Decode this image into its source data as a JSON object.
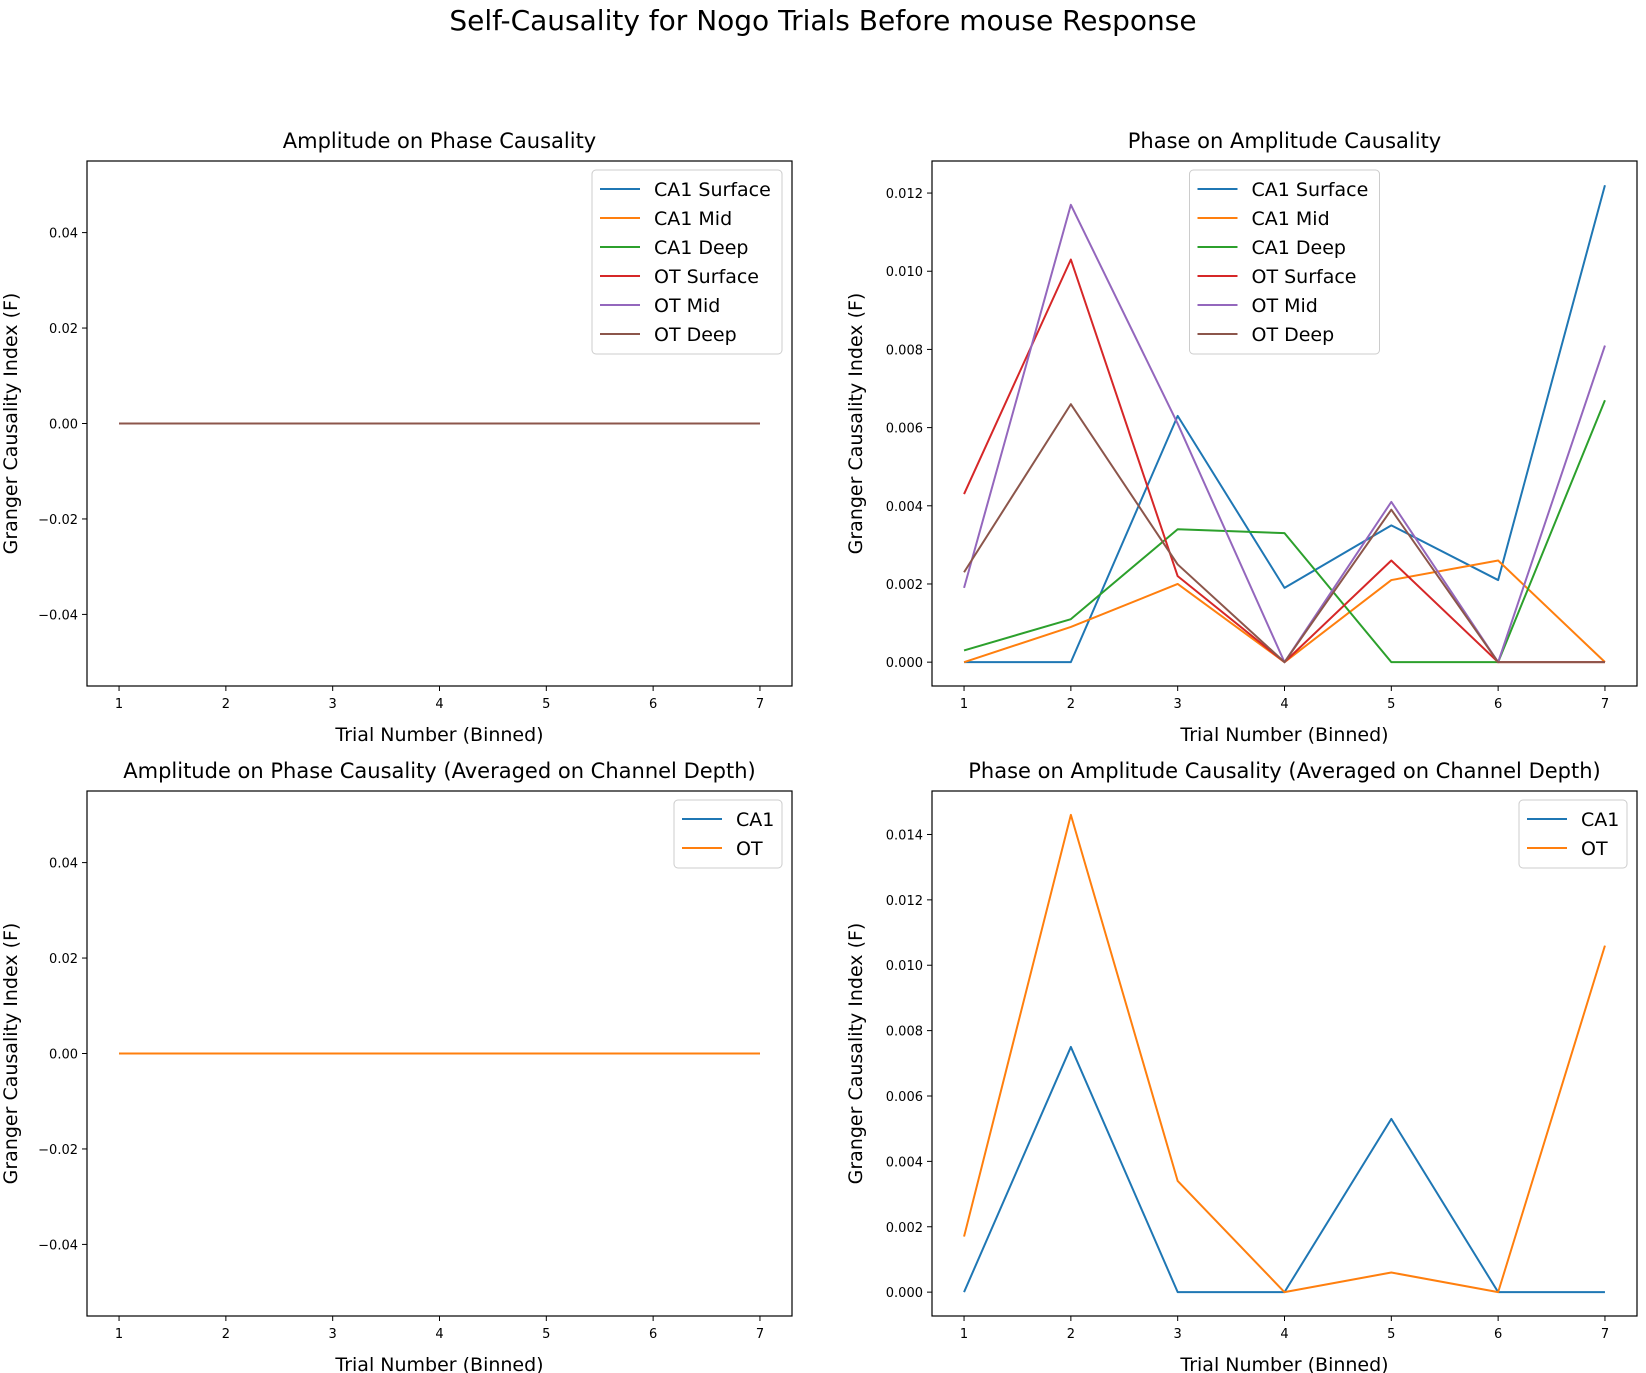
{
  "figure": {
    "suptitle": "Self-Causality for Nogo Trials Before mouse Response"
  },
  "colors": {
    "CA1 Surface": "#1f77b4",
    "CA1 Mid": "#ff7f0e",
    "CA1 Deep": "#2ca02c",
    "OT Surface": "#d62728",
    "OT Mid": "#9467bd",
    "OT Deep": "#8c564b",
    "CA1": "#1f77b4",
    "OT": "#ff7f0e"
  },
  "chart_data": [
    {
      "type": "line",
      "title": "Amplitude on Phase Causality",
      "xlabel": "Trial Number (Binned)",
      "ylabel": "Granger Causality Index (F)",
      "x": [
        1,
        2,
        3,
        4,
        5,
        6,
        7
      ],
      "xlim": [
        0.7,
        7.3
      ],
      "ylim": [
        -0.055,
        0.055
      ],
      "xticks": [
        1,
        2,
        3,
        4,
        5,
        6,
        7
      ],
      "yticks": [
        -0.04,
        -0.02,
        0.0,
        0.02,
        0.04
      ],
      "ytick_labels": [
        "−0.04",
        "−0.02",
        "0.00",
        "0.02",
        "0.04"
      ],
      "grid": false,
      "legend": "top-right",
      "series": [
        {
          "name": "CA1 Surface",
          "values": [
            0,
            0,
            0,
            0,
            0,
            0,
            0
          ]
        },
        {
          "name": "CA1 Mid",
          "values": [
            0,
            0,
            0,
            0,
            0,
            0,
            0
          ]
        },
        {
          "name": "CA1 Deep",
          "values": [
            0,
            0,
            0,
            0,
            0,
            0,
            0
          ]
        },
        {
          "name": "OT Surface",
          "values": [
            0,
            0,
            0,
            0,
            0,
            0,
            0
          ]
        },
        {
          "name": "OT Mid",
          "values": [
            0,
            0,
            0,
            0,
            0,
            0,
            0
          ]
        },
        {
          "name": "OT Deep",
          "values": [
            0,
            0,
            0,
            0,
            0,
            0,
            0
          ]
        }
      ]
    },
    {
      "type": "line",
      "title": "Phase on Amplitude Causality",
      "xlabel": "Trial Number (Binned)",
      "ylabel": "Granger Causality Index (F)",
      "x": [
        1,
        2,
        3,
        4,
        5,
        6,
        7
      ],
      "xlim": [
        0.7,
        7.3
      ],
      "ylim": [
        -0.00061,
        0.01282
      ],
      "xticks": [
        1,
        2,
        3,
        4,
        5,
        6,
        7
      ],
      "yticks": [
        0.0,
        0.002,
        0.004,
        0.006,
        0.008,
        0.01,
        0.012
      ],
      "ytick_labels": [
        "0.000",
        "0.002",
        "0.004",
        "0.006",
        "0.008",
        "0.010",
        "0.012"
      ],
      "grid": false,
      "legend": "top-center",
      "series": [
        {
          "name": "CA1 Surface",
          "values": [
            0.0,
            0.0,
            0.0063,
            0.0019,
            0.0035,
            0.0021,
            0.0122
          ]
        },
        {
          "name": "CA1 Mid",
          "values": [
            0.0,
            0.0009,
            0.002,
            0.0,
            0.0021,
            0.0026,
            0.0
          ]
        },
        {
          "name": "CA1 Deep",
          "values": [
            0.0003,
            0.0011,
            0.0034,
            0.0033,
            0.0,
            0.0,
            0.0067
          ]
        },
        {
          "name": "OT Surface",
          "values": [
            0.0043,
            0.0103,
            0.0022,
            0.0,
            0.0026,
            0.0,
            0.0
          ]
        },
        {
          "name": "OT Mid",
          "values": [
            0.0019,
            0.0117,
            0.0061,
            0.0,
            0.0041,
            0.0,
            0.0081
          ]
        },
        {
          "name": "OT Deep",
          "values": [
            0.0023,
            0.0066,
            0.0025,
            0.0,
            0.0039,
            0.0,
            0.0
          ]
        }
      ]
    },
    {
      "type": "line",
      "title": "Amplitude on Phase Causality (Averaged on Channel Depth)",
      "xlabel": "Trial Number (Binned)",
      "ylabel": "Granger Causality Index (F)",
      "x": [
        1,
        2,
        3,
        4,
        5,
        6,
        7
      ],
      "xlim": [
        0.7,
        7.3
      ],
      "ylim": [
        -0.055,
        0.055
      ],
      "xticks": [
        1,
        2,
        3,
        4,
        5,
        6,
        7
      ],
      "yticks": [
        -0.04,
        -0.02,
        0.0,
        0.02,
        0.04
      ],
      "ytick_labels": [
        "−0.04",
        "−0.02",
        "0.00",
        "0.02",
        "0.04"
      ],
      "grid": false,
      "legend": "top-right",
      "series": [
        {
          "name": "CA1",
          "values": [
            0,
            0,
            0,
            0,
            0,
            0,
            0
          ]
        },
        {
          "name": "OT",
          "values": [
            0,
            0,
            0,
            0,
            0,
            0,
            0
          ]
        }
      ]
    },
    {
      "type": "line",
      "title": "Phase on Amplitude Causality (Averaged on Channel Depth)",
      "xlabel": "Trial Number (Binned)",
      "ylabel": "Granger Causality Index (F)",
      "x": [
        1,
        2,
        3,
        4,
        5,
        6,
        7
      ],
      "xlim": [
        0.7,
        7.3
      ],
      "ylim": [
        -0.00073,
        0.01533
      ],
      "xticks": [
        1,
        2,
        3,
        4,
        5,
        6,
        7
      ],
      "yticks": [
        0.0,
        0.002,
        0.004,
        0.006,
        0.008,
        0.01,
        0.012,
        0.014
      ],
      "ytick_labels": [
        "0.000",
        "0.002",
        "0.004",
        "0.006",
        "0.008",
        "0.010",
        "0.012",
        "0.014"
      ],
      "grid": false,
      "legend": "top-right",
      "series": [
        {
          "name": "CA1",
          "values": [
            0.0,
            0.0075,
            0.0,
            0.0,
            0.0053,
            0.0,
            0.0
          ]
        },
        {
          "name": "OT",
          "values": [
            0.0017,
            0.0146,
            0.0034,
            0.0,
            0.0006,
            0.0,
            0.0106
          ]
        }
      ]
    }
  ]
}
